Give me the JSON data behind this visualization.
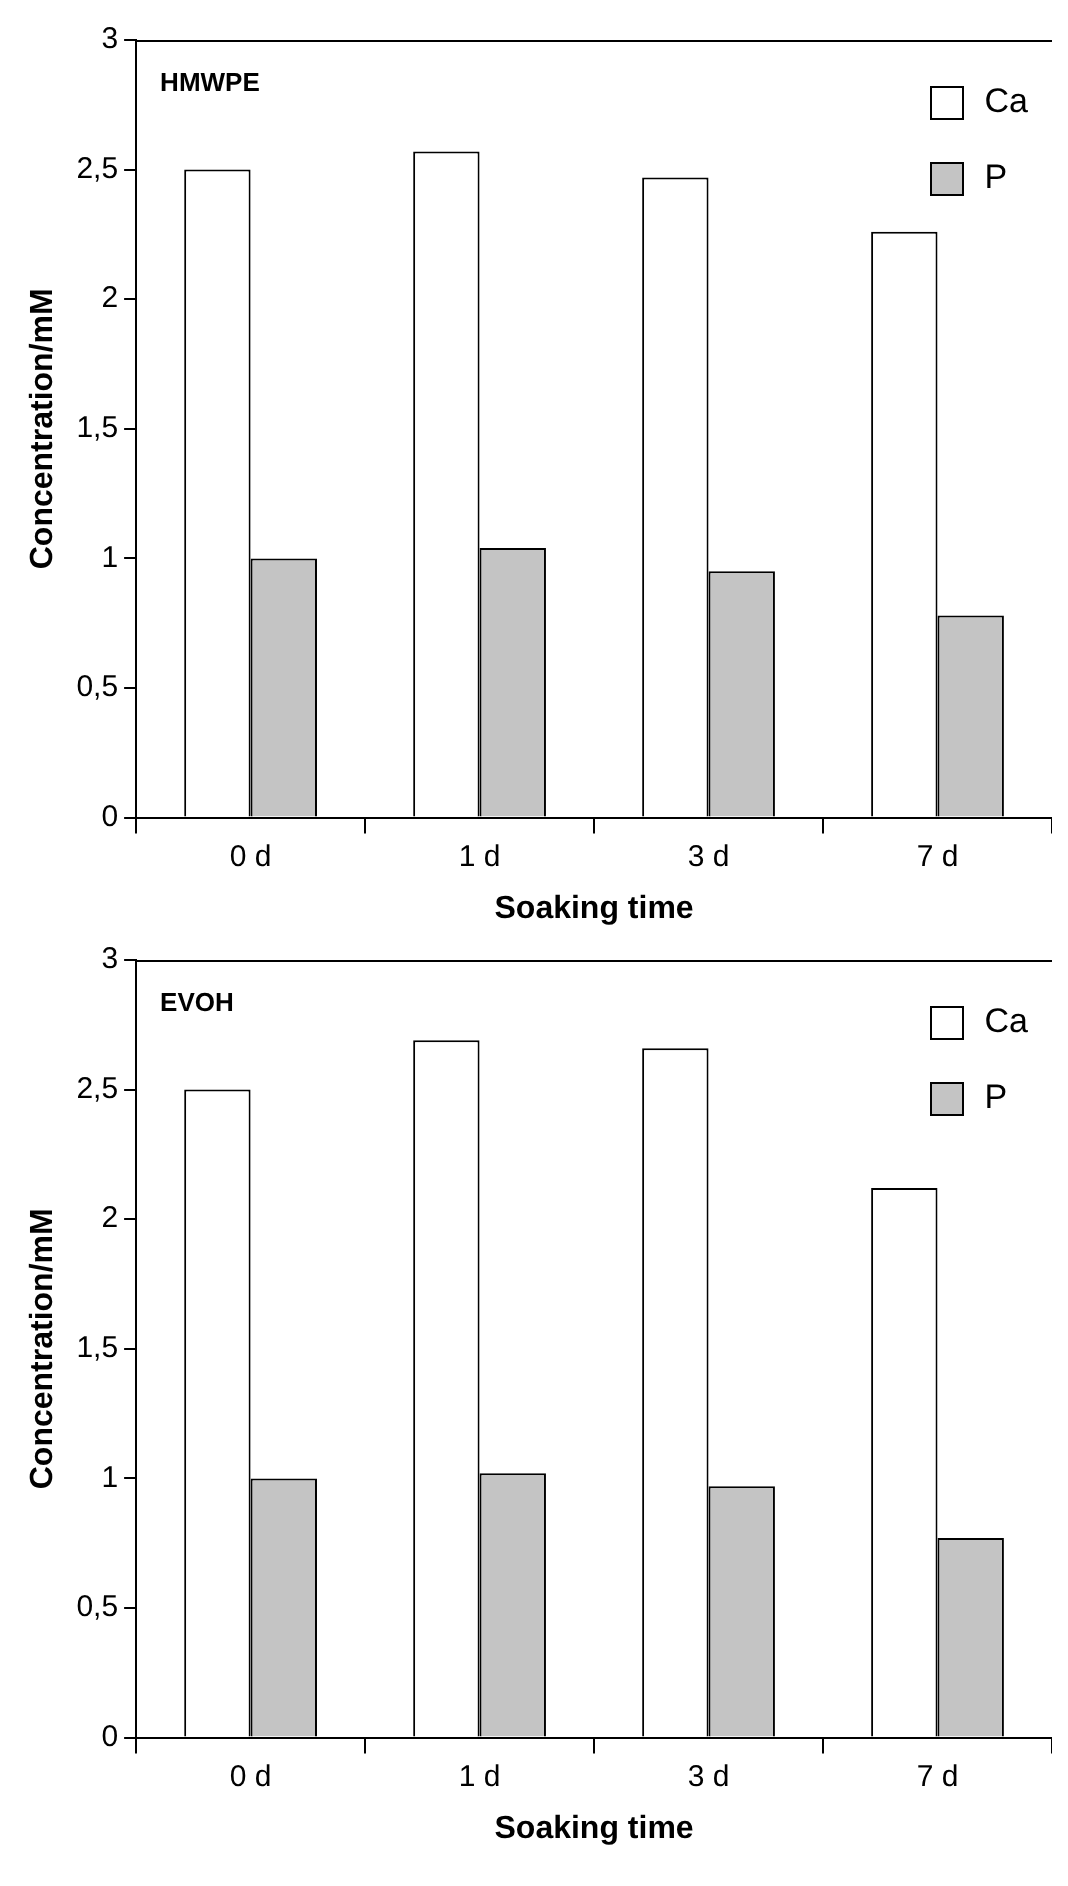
{
  "chart_data": [
    {
      "type": "bar",
      "title": "HMWPE",
      "xlabel": "Soaking time",
      "ylabel": "Concentration/mM",
      "categories": [
        "0 d",
        "1 d",
        "3 d",
        "7 d"
      ],
      "series": [
        {
          "name": "Ca",
          "color": "#ffffff",
          "values": [
            2.5,
            2.57,
            2.47,
            2.26
          ]
        },
        {
          "name": "P",
          "color": "#c4c4c4",
          "values": [
            1.0,
            1.04,
            0.95,
            0.78
          ]
        }
      ],
      "ylim": [
        0,
        3
      ],
      "yticks": [
        0,
        {
          "value": 0.5,
          "label": "0,5"
        },
        1,
        {
          "value": 1.5,
          "label": "1,5"
        },
        2,
        {
          "value": 2.5,
          "label": "2,5"
        },
        3
      ],
      "grid": false,
      "legend": "top right"
    },
    {
      "type": "bar",
      "title": "EVOH",
      "xlabel": "Soaking time",
      "ylabel": "Concentration/mM",
      "categories": [
        "0 d",
        "1 d",
        "3 d",
        "7 d"
      ],
      "series": [
        {
          "name": "Ca",
          "color": "#ffffff",
          "values": [
            2.5,
            2.69,
            2.66,
            2.12
          ]
        },
        {
          "name": "P",
          "color": "#c4c4c4",
          "values": [
            1.0,
            1.02,
            0.97,
            0.77
          ]
        }
      ],
      "ylim": [
        0,
        3
      ],
      "yticks": [
        0,
        {
          "value": 0.5,
          "label": "0,5"
        },
        1,
        {
          "value": 1.5,
          "label": "1,5"
        },
        2,
        {
          "value": 2.5,
          "label": "2,5"
        },
        3
      ],
      "grid": false,
      "legend": "top right"
    }
  ]
}
